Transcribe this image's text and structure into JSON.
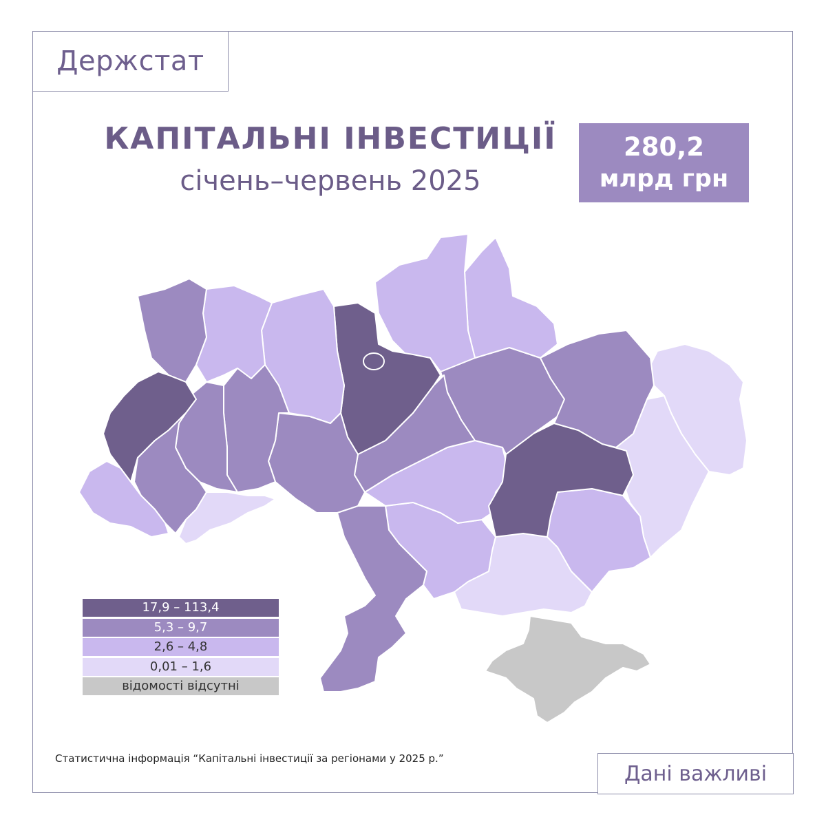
{
  "header": {
    "brand": "Держстат"
  },
  "title": "КАПІТАЛЬНІ ІНВЕСТИЦІЇ",
  "subtitle": "січень–червень 2025",
  "total": {
    "value": "280,2",
    "unit": "млрд грн"
  },
  "legend": [
    {
      "label": "17,9 – 113,4",
      "color": "#6f5f8c",
      "text_color": "#ffffff"
    },
    {
      "label": "5,3 – 9,7",
      "color": "#9c8ac0",
      "text_color": "#ffffff"
    },
    {
      "label": "2,6 – 4,8",
      "color": "#c9b8ee",
      "text_color": "#333333"
    },
    {
      "label": "0,01 – 1,6",
      "color": "#e2d9f8",
      "text_color": "#333333"
    },
    {
      "label": "відомості відсутні",
      "color": "#c8c8c8",
      "text_color": "#333333"
    }
  ],
  "regions": [
    {
      "name": "lviv",
      "band": 0
    },
    {
      "name": "volyn",
      "band": 1
    },
    {
      "name": "rivne",
      "band": 2
    },
    {
      "name": "zhytomyr",
      "band": 2
    },
    {
      "name": "kyiv",
      "band": 0
    },
    {
      "name": "chernihiv",
      "band": 2
    },
    {
      "name": "sumy",
      "band": 2
    },
    {
      "name": "kharkiv",
      "band": 1
    },
    {
      "name": "luhansk",
      "band": 3
    },
    {
      "name": "donetsk",
      "band": 3
    },
    {
      "name": "poltava",
      "band": 1
    },
    {
      "name": "cherkasy",
      "band": 1
    },
    {
      "name": "dnipropetrovsk",
      "band": 0
    },
    {
      "name": "zaporizhzhia",
      "band": 2
    },
    {
      "name": "kherson",
      "band": 3
    },
    {
      "name": "crimea",
      "band": 4
    },
    {
      "name": "mykolaiv",
      "band": 2
    },
    {
      "name": "kirovohrad",
      "band": 2
    },
    {
      "name": "odesa",
      "band": 1
    },
    {
      "name": "vinnytsia",
      "band": 1
    },
    {
      "name": "khmelnytskyi",
      "band": 1
    },
    {
      "name": "ternopil",
      "band": 1
    },
    {
      "name": "ivano-frankivsk",
      "band": 1
    },
    {
      "name": "zakarpattia",
      "band": 2
    },
    {
      "name": "chernivtsi",
      "band": 3
    }
  ],
  "footer": {
    "source": "Статистична інформація “Капітальні інвестиції за регіонами у 2025 р.”",
    "cta": "Дані важливі"
  }
}
